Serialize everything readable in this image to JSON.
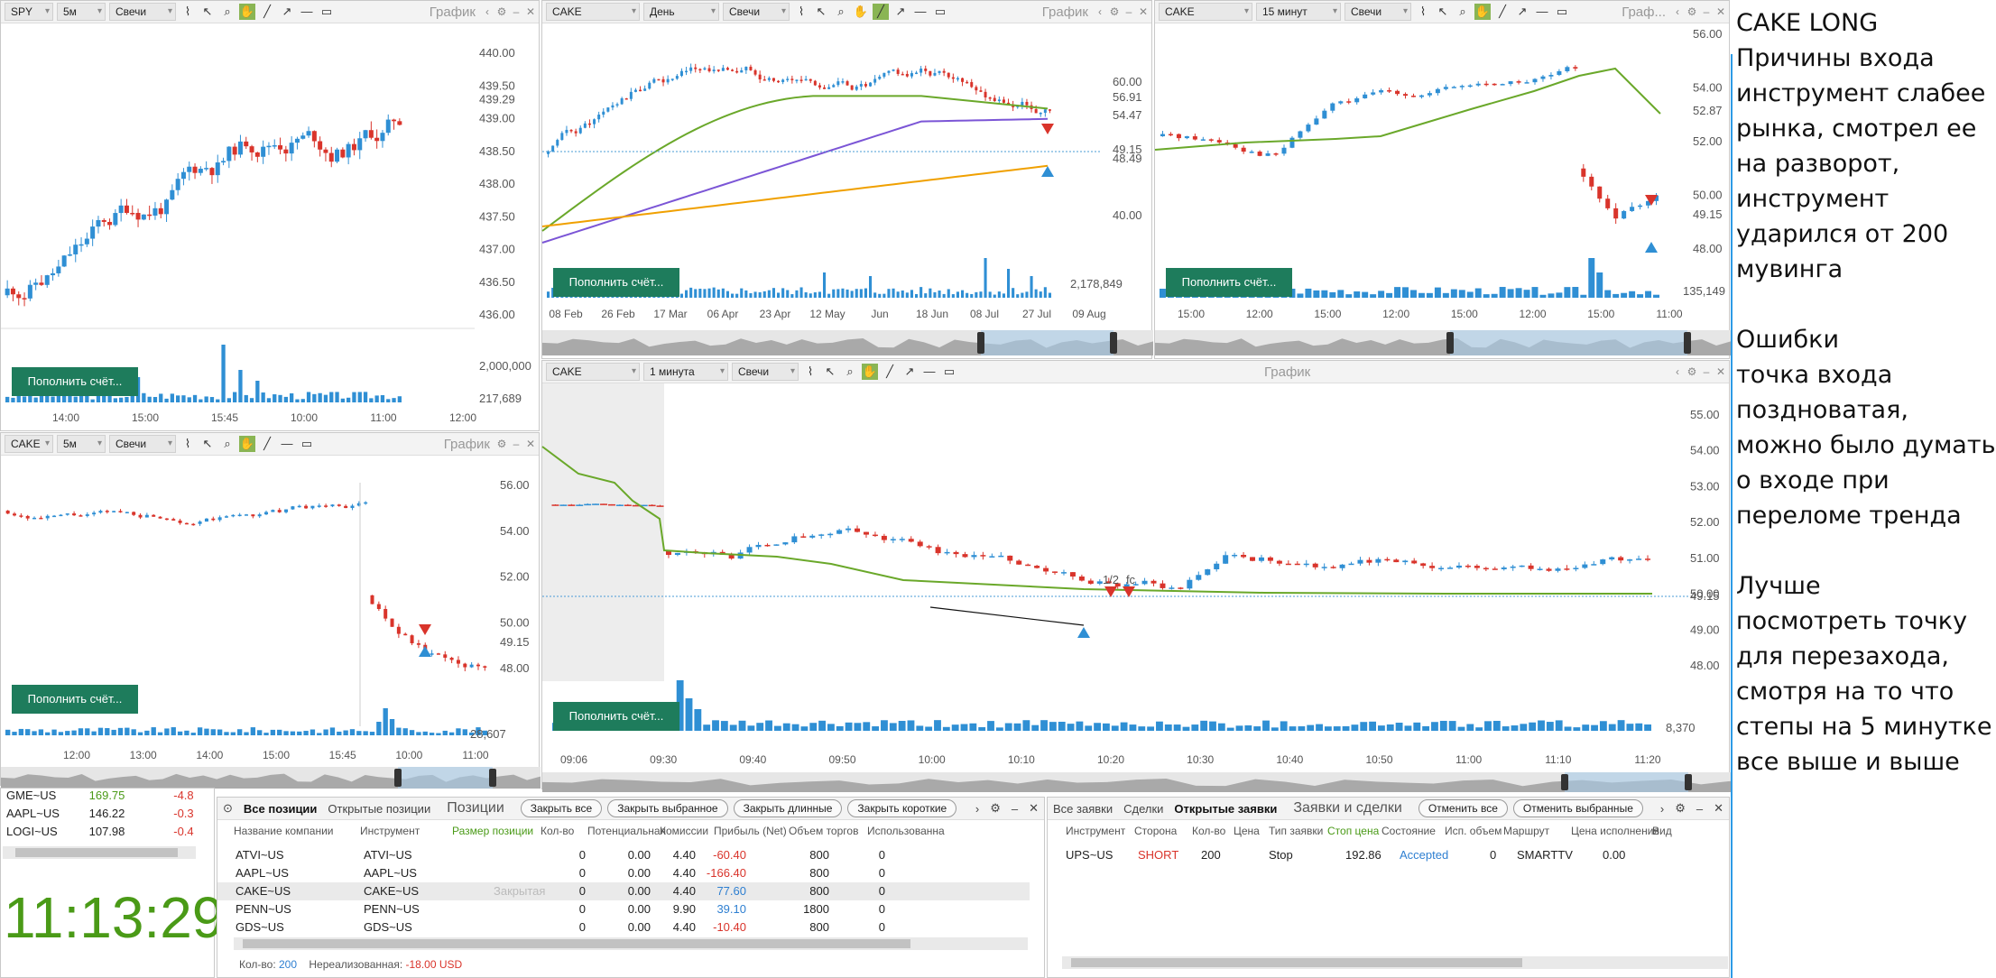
{
  "toolbar_labels": {
    "grafik": "График",
    "grafik_short": "Граф...",
    "candles": "Свечи",
    "fund_button": "Пополнить счёт..."
  },
  "panels": {
    "spy": {
      "symbol": "SPY",
      "interval": "5м",
      "last_price": "439.29",
      "volume_label": "217,689",
      "vol_top": "2,000,000",
      "y_ticks": [
        "440.00",
        "439.50",
        "439.00",
        "438.50",
        "438.00",
        "437.50",
        "437.00",
        "436.50",
        "436.00"
      ],
      "x_ticks": [
        "14:00",
        "15:00",
        "15:45",
        "10:00",
        "11:00",
        "12:00"
      ]
    },
    "cake_day": {
      "symbol": "CAKE",
      "interval": "День",
      "y_ticks": [
        "60.00",
        "40.00"
      ],
      "ma_labels": [
        "56.91",
        "54.47",
        "49.15",
        "48.49"
      ],
      "volume_label": "2,178,849",
      "x_ticks": [
        "08 Feb",
        "26 Feb",
        "17 Mar",
        "06 Apr",
        "23 Apr",
        "12 May",
        "Jun",
        "18 Jun",
        "08 Jul",
        "27 Jul",
        "09 Aug"
      ]
    },
    "cake_15": {
      "symbol": "CAKE",
      "interval": "15 минут",
      "y_ticks": [
        "56.00",
        "54.00",
        "52.00",
        "50.00",
        "48.00"
      ],
      "ma_label": "52.87",
      "last_price": "49.15",
      "volume_label": "135,149",
      "x_ticks": [
        "15:00",
        "12:00",
        "15:00",
        "12:00",
        "15:00",
        "12:00",
        "15:00",
        "11:00"
      ]
    },
    "cake_5": {
      "symbol": "CAKE",
      "interval": "5м",
      "y_ticks": [
        "56.00",
        "54.00",
        "52.00",
        "50.00",
        "48.00"
      ],
      "last_price": "49.15",
      "volume_label": "28,607",
      "x_ticks": [
        "12:00",
        "13:00",
        "14:00",
        "15:00",
        "15:45",
        "10:00",
        "11:00"
      ]
    },
    "cake_1": {
      "symbol": "CAKE",
      "interval": "1 минута",
      "y_ticks": [
        "55.00",
        "54.00",
        "53.00",
        "52.00",
        "51.00",
        "50.00",
        "49.00",
        "48.00"
      ],
      "last_price": "49.15",
      "volume_label": "8,370",
      "annotations": [
        "1/2",
        "fc"
      ],
      "x_ticks": [
        "09:06",
        "09:30",
        "09:40",
        "09:50",
        "10:00",
        "10:10",
        "10:20",
        "10:30",
        "10:40",
        "10:50",
        "11:00",
        "11:10",
        "11:20"
      ]
    }
  },
  "notes": {
    "title": "CAKE LONG",
    "lines": [
      "Причины входа",
      "инструмент слабее",
      "рынка, смотрел ее",
      "на разворот,",
      "инструмент",
      "ударился от 200",
      "мувинга",
      "",
      "Ошибки",
      "точка входа",
      "поздноватая,",
      "можно было думать",
      "о входе при",
      "переломе тренда",
      "",
      "Лучше",
      "посмотреть точку",
      "для перезахода,",
      "смотря на то что",
      "степы на 5 минутке",
      "все выше и выше"
    ]
  },
  "watchlist": {
    "rows": [
      {
        "sym": "GME~US",
        "price": "169.75",
        "chg": "-4.8"
      },
      {
        "sym": "AAPL~US",
        "price": "146.22",
        "chg": "-0.3"
      },
      {
        "sym": "LOGI~US",
        "price": "107.98",
        "chg": "-0.4"
      }
    ],
    "clock": "11:13:29"
  },
  "positions": {
    "tabs": [
      "Все позиции",
      "Открытые позиции"
    ],
    "title": "Позиции",
    "buttons": [
      "Закрыть все",
      "Закрыть выбранное",
      "Закрыть длинные",
      "Закрыть короткие"
    ],
    "headers": [
      "Название компании",
      "Инструмент",
      "Размер позиции",
      "Кол-во",
      "Потенциальная",
      "Комиссии",
      "Прибыль (Net)",
      "Объем торгов",
      "Использованна"
    ],
    "rows": [
      [
        "ATVI~US",
        "ATVI~US",
        "",
        "0",
        "0.00",
        "4.40",
        "-60.40",
        "800",
        "0"
      ],
      [
        "AAPL~US",
        "AAPL~US",
        "",
        "0",
        "0.00",
        "4.40",
        "-166.40",
        "800",
        "0"
      ],
      [
        "CAKE~US",
        "CAKE~US",
        "Закрытая",
        "0",
        "0.00",
        "4.40",
        "77.60",
        "800",
        "0"
      ],
      [
        "PENN~US",
        "PENN~US",
        "",
        "0",
        "0.00",
        "9.90",
        "39.10",
        "1800",
        "0"
      ],
      [
        "GDS~US",
        "GDS~US",
        "",
        "0",
        "0.00",
        "4.40",
        "-10.40",
        "800",
        "0"
      ]
    ],
    "footer_qty_label": "Кол-во:",
    "footer_qty": "200",
    "footer_unreal_label": "Нереализованная:",
    "footer_unreal": "-18.00 USD"
  },
  "orders": {
    "tabs": [
      "Все заявки",
      "Сделки",
      "Открытые заявки"
    ],
    "title": "Заявки и сделки",
    "buttons": [
      "Отменить все",
      "Отменить выбранные"
    ],
    "headers": [
      "Инструмент",
      "Сторона",
      "Кол-во",
      "Цена",
      "Тип заявки",
      "Стоп цена",
      "Состояние",
      "Исп. объем",
      "Маршрут",
      "Цена исполнения",
      "Вид"
    ],
    "row": [
      "UPS~US",
      "SHORT",
      "200",
      "",
      "Stop",
      "192.86",
      "Accepted",
      "0",
      "SMARTTV",
      "0.00",
      ""
    ]
  },
  "colors": {
    "up": "#2f8fd4",
    "down": "#d9342b",
    "ma_green": "#6aa82a",
    "ma_purple": "#7b55d6",
    "ma_orange": "#f0a000",
    "fund": "#1e7c5c",
    "clock": "#4a9a17"
  }
}
